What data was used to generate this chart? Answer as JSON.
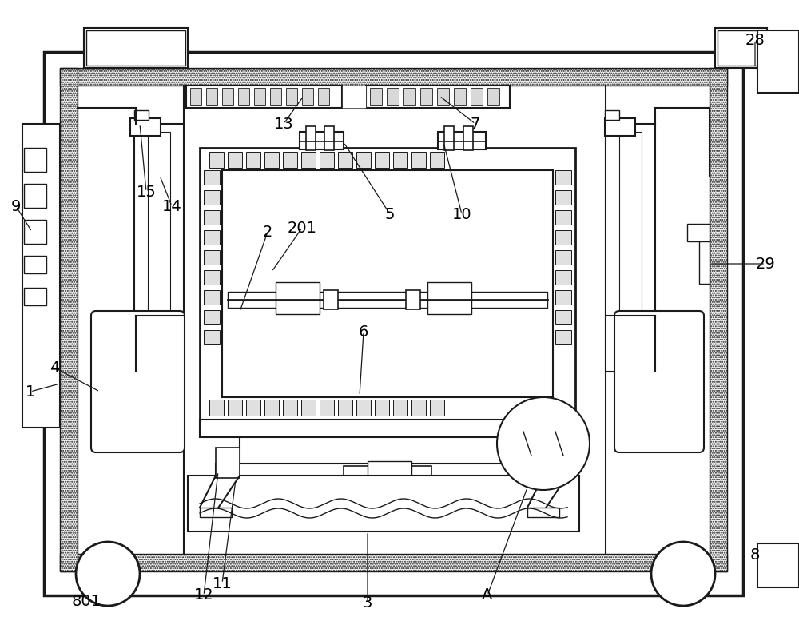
{
  "bg_color": "#ffffff",
  "lc": "#1a1a1a",
  "figsize": [
    10.0,
    7.87
  ],
  "dpi": 100
}
